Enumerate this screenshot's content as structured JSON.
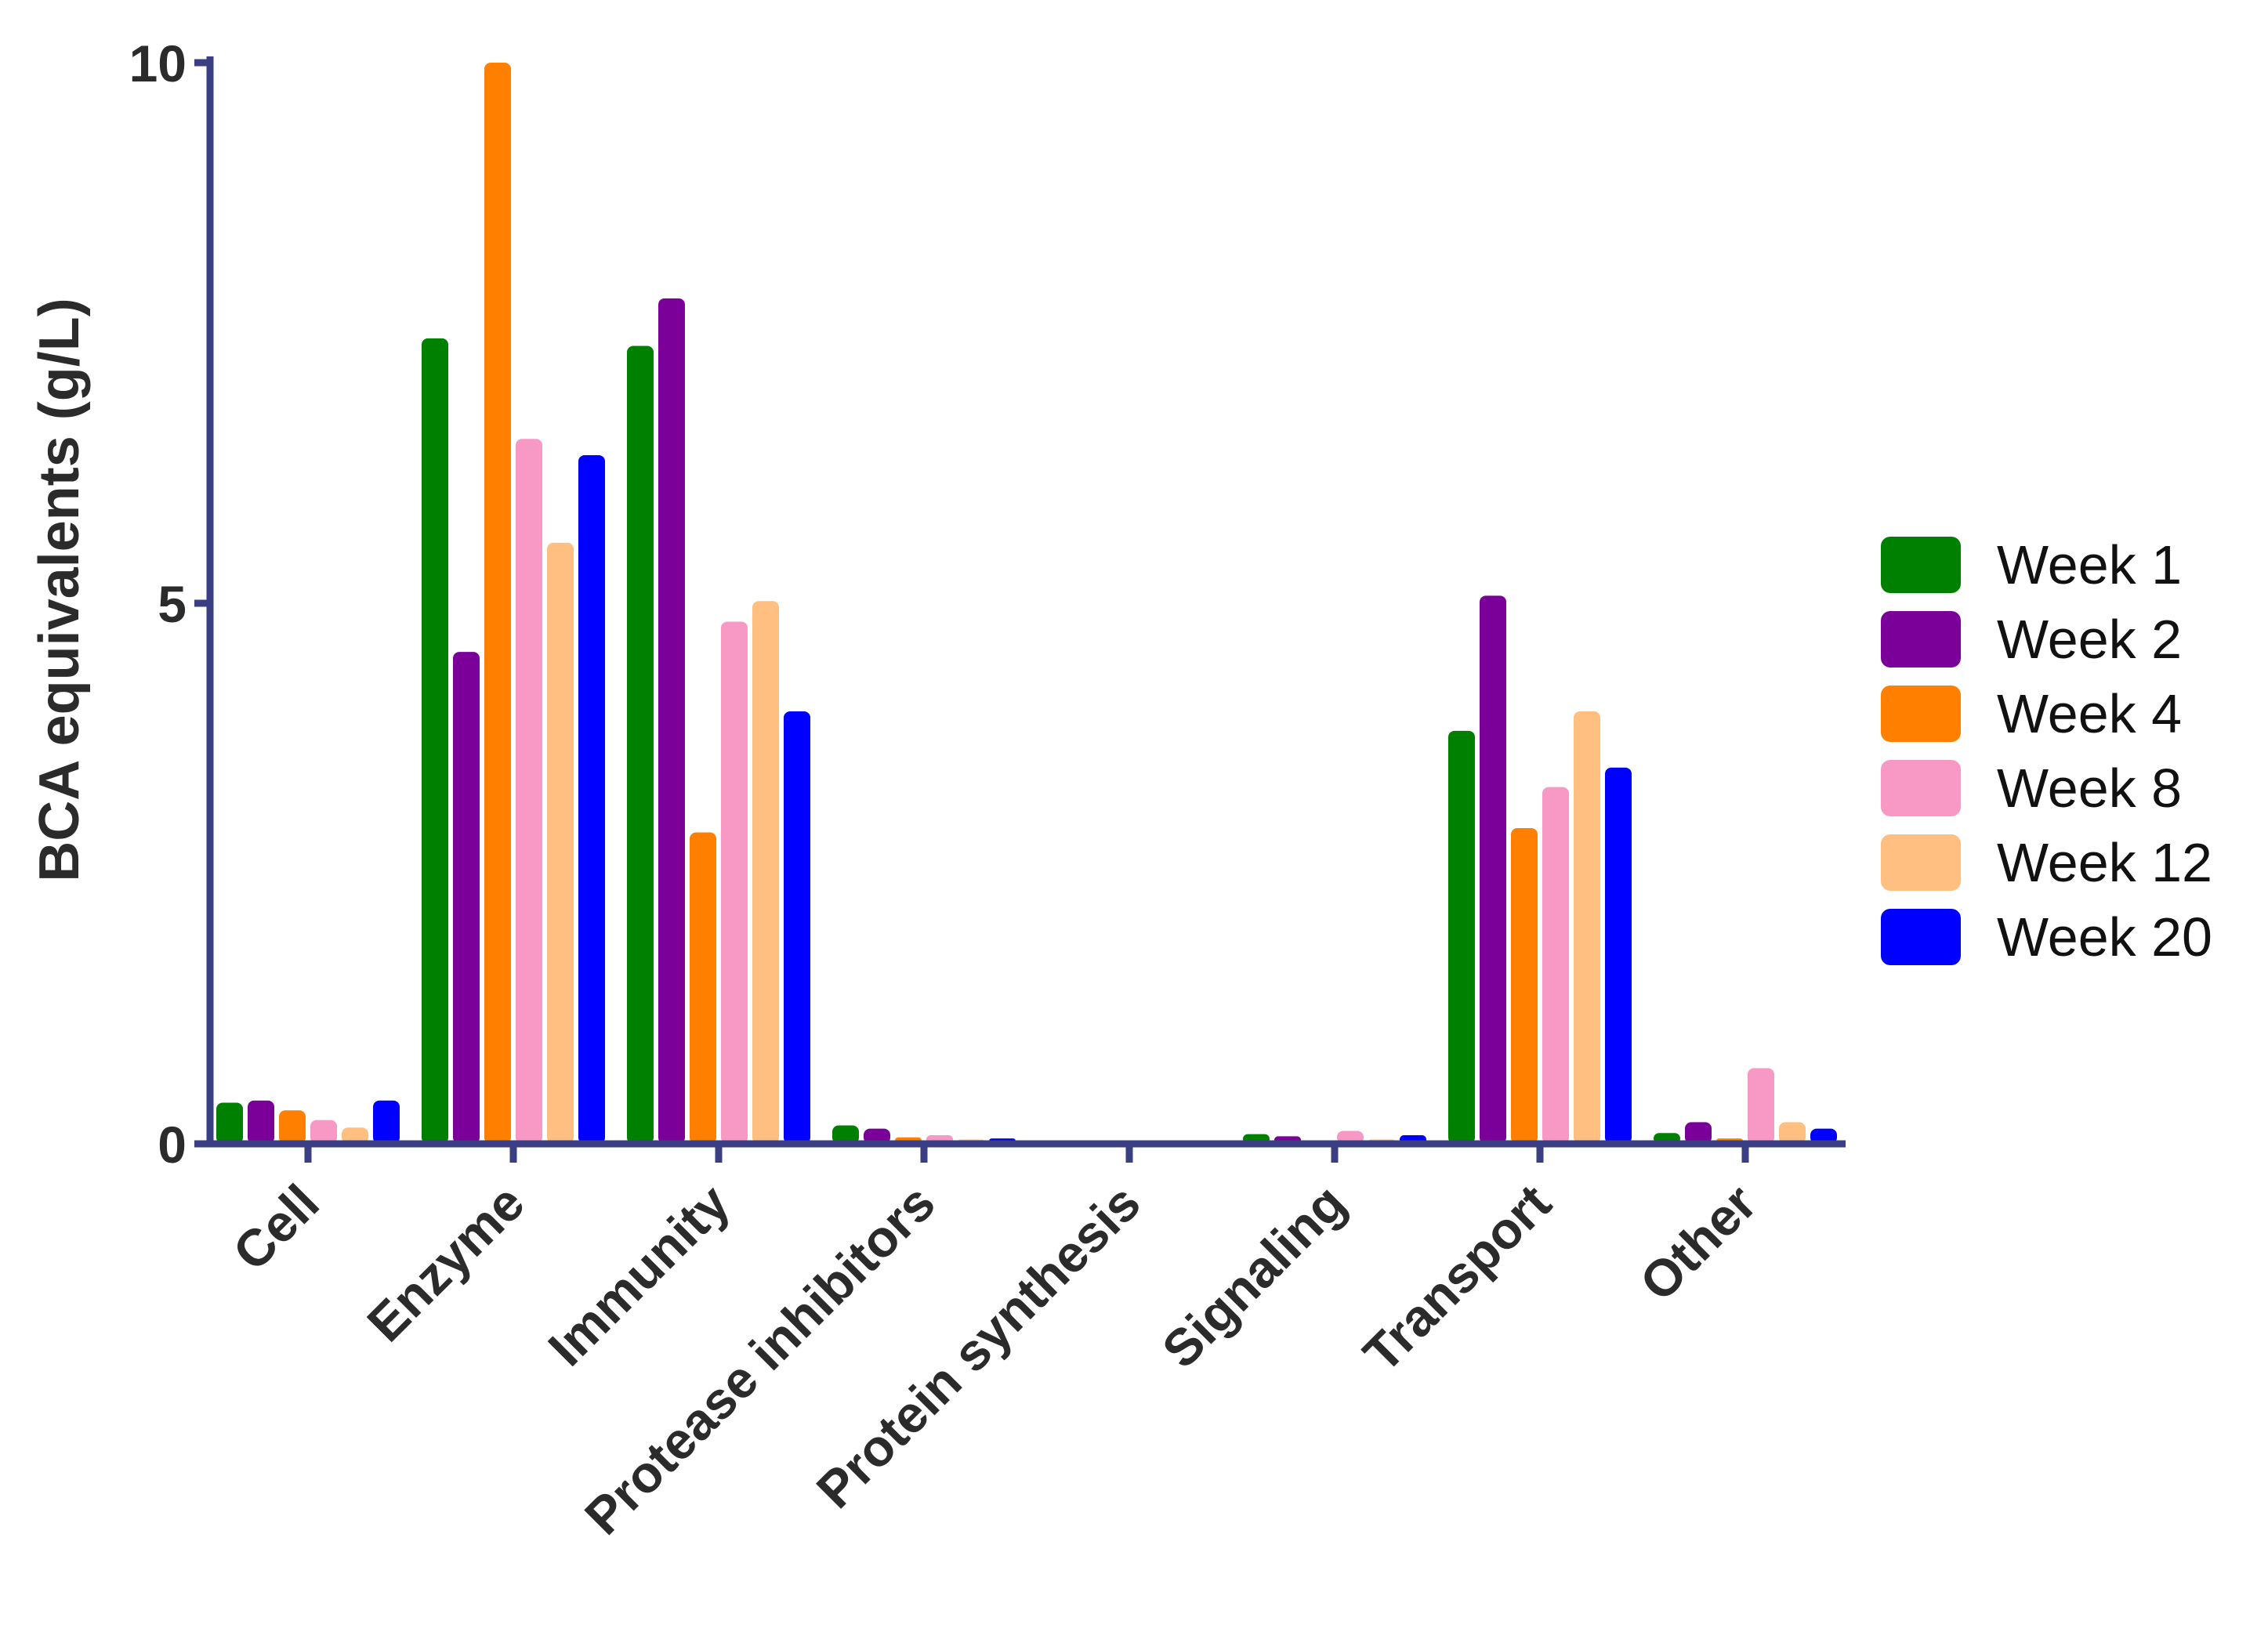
{
  "chart_data": {
    "type": "bar",
    "title": "",
    "xlabel": "",
    "ylabel": "BCA equivalents (g/L)",
    "ylim": [
      0,
      10
    ],
    "yticks": [
      0,
      5,
      10
    ],
    "grid": false,
    "legend_position": "right",
    "categories": [
      "Cell",
      "Enzyme",
      "Immunity",
      "Protease inhibitors",
      "Protein synthesis",
      "Signaling",
      "Transport",
      "Other"
    ],
    "series": [
      {
        "name": "Week 1",
        "color": "#008000",
        "values": [
          0.38,
          7.45,
          7.38,
          0.17,
          0.03,
          0.09,
          3.82,
          0.1
        ]
      },
      {
        "name": "Week 2",
        "color": "#7B0099",
        "values": [
          0.4,
          4.55,
          7.82,
          0.14,
          0.02,
          0.07,
          5.07,
          0.2
        ]
      },
      {
        "name": "Week 4",
        "color": "#FF7F00",
        "values": [
          0.31,
          10.0,
          2.88,
          0.06,
          0.0,
          0.03,
          2.92,
          0.05
        ]
      },
      {
        "name": "Week 8",
        "color": "#F799C4",
        "values": [
          0.22,
          6.52,
          4.83,
          0.08,
          0.0,
          0.12,
          3.3,
          0.7
        ]
      },
      {
        "name": "Week 12",
        "color": "#FFBF80",
        "values": [
          0.15,
          5.56,
          5.02,
          0.04,
          0.0,
          0.04,
          4.0,
          0.2
        ]
      },
      {
        "name": "Week 20",
        "color": "#0000FF",
        "values": [
          0.4,
          6.37,
          4.0,
          0.05,
          0.0,
          0.08,
          3.48,
          0.14
        ]
      }
    ]
  }
}
